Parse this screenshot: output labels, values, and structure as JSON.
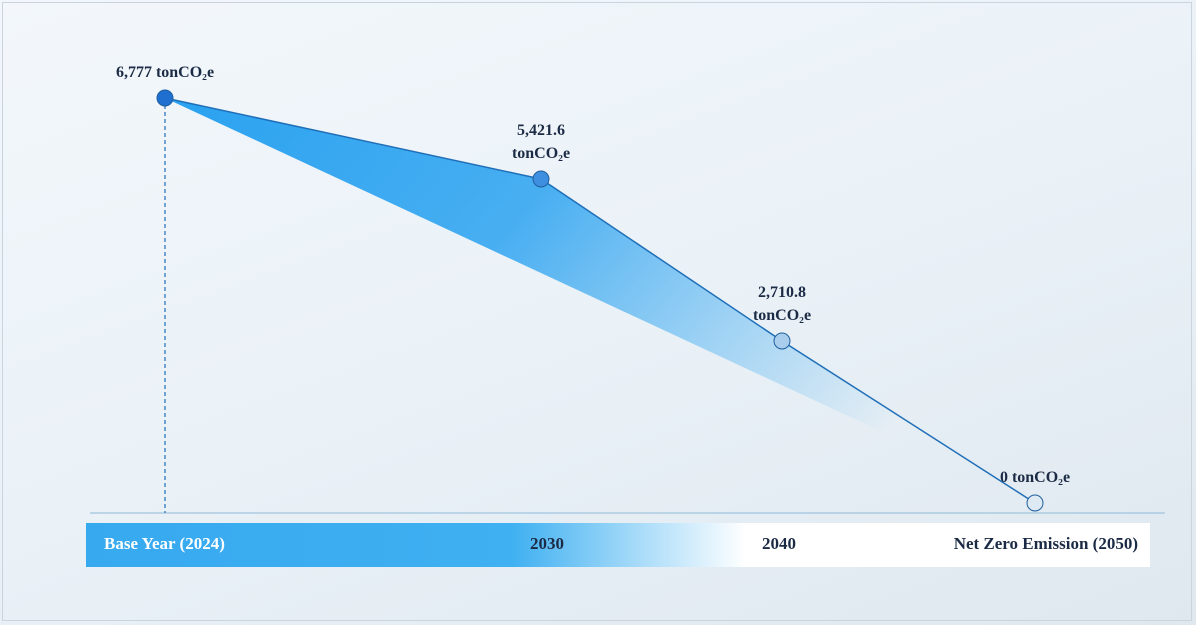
{
  "chart_data": {
    "type": "line",
    "categories": [
      "Base Year (2024)",
      "2030",
      "2040",
      "Net Zero Emission (2050)"
    ],
    "values": [
      6777,
      5421.6,
      2710.8,
      0
    ],
    "value_labels": [
      "6,777 tonCO₂e",
      "5,421.6 tonCO₂e",
      "2,710.8 tonCO₂e",
      "0 tonCO₂e"
    ],
    "color": "#1f6fb8",
    "marker_colors": [
      "#1f6fd0",
      "#3f8fe0",
      "#a9cdec",
      "#dde9f3"
    ],
    "area_color": "#2aa2f0"
  }
}
